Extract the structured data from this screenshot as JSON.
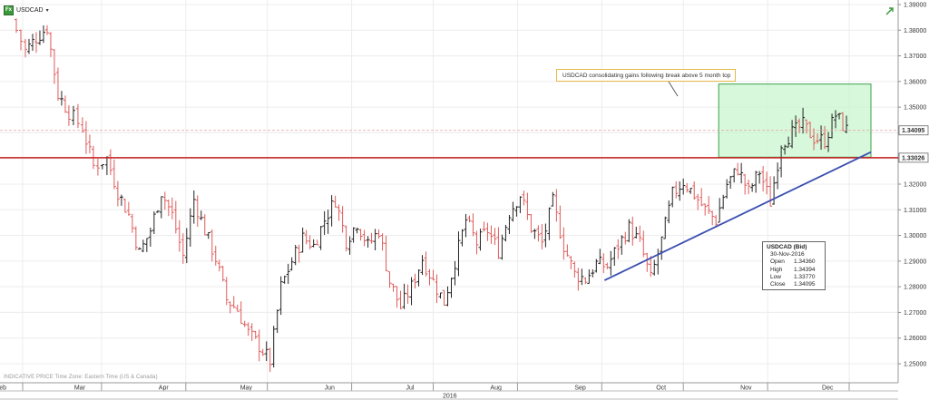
{
  "header": {
    "icon_label": "Fx",
    "symbol": "USDCAD",
    "caret": "▾"
  },
  "annotation": {
    "text": "USDCAD consolidating gains following break above  5 month top"
  },
  "info_box": {
    "title": "USDCAD (Bid)",
    "date": "30-Nov-2016",
    "rows": [
      {
        "label": "Open",
        "value": "1.34360"
      },
      {
        "label": "High",
        "value": "1.34394"
      },
      {
        "label": "Low",
        "value": "1.33770"
      },
      {
        "label": "Close",
        "value": "1.34095"
      }
    ]
  },
  "footer": {
    "note": "INDICATIVE PRICE   Time Zone: Eastern Time (US & Canada)"
  },
  "price_tags": {
    "current": "1.34095",
    "support": "1.33026"
  },
  "colors": {
    "up_bar": "#222222",
    "down_bar": "#e05a5a",
    "support_line": "#c81e1e",
    "trendline": "#3a4fb0",
    "highlight_fill": "#c9f5cf",
    "highlight_border": "#3aa04a",
    "current_price_line": "#e8a0a0"
  },
  "chart_data": {
    "type": "ohlc",
    "title": "USDCAD",
    "year_label": "2016",
    "x_months": [
      "Feb",
      "Mar",
      "Apr",
      "May",
      "Jun",
      "Jul",
      "Aug",
      "Sep",
      "Oct",
      "Nov",
      "Dec"
    ],
    "y_ticks": [
      "1.39000",
      "1.38000",
      "1.37000",
      "1.36000",
      "1.35000",
      "1.34000",
      "1.33000",
      "1.32000",
      "1.31000",
      "1.30000",
      "1.29000",
      "1.28000",
      "1.27000",
      "1.26000",
      "1.25000"
    ],
    "ylim": [
      1.245,
      1.39
    ],
    "grid": true,
    "support_level": 1.3303,
    "current_close": 1.34095,
    "trendline": {
      "start": {
        "date": "2016-09-02",
        "price": 1.2825
      },
      "end": {
        "date": "2016-12-09",
        "price": 1.3325
      }
    },
    "consolidation_box": {
      "start": "2016-10-14",
      "end": "2016-12-09",
      "low": 1.3305,
      "high": 1.359
    },
    "x": [
      "2016-01-28",
      "2016-12-09"
    ],
    "series": [
      {
        "close_path": [
          [
            "2016-01-28",
            1.384
          ],
          [
            "2016-02-02",
            1.372
          ],
          [
            "2016-02-06",
            1.377
          ],
          [
            "2016-02-10",
            1.381
          ],
          [
            "2016-02-14",
            1.355
          ],
          [
            "2016-02-18",
            1.348
          ],
          [
            "2016-02-23",
            1.342
          ],
          [
            "2016-02-27",
            1.327
          ],
          [
            "2016-03-03",
            1.33
          ],
          [
            "2016-03-07",
            1.317
          ],
          [
            "2016-03-11",
            1.308
          ],
          [
            "2016-03-15",
            1.293
          ],
          [
            "2016-03-19",
            1.302
          ],
          [
            "2016-03-23",
            1.317
          ],
          [
            "2016-03-27",
            1.308
          ],
          [
            "2016-03-31",
            1.292
          ],
          [
            "2016-04-04",
            1.314
          ],
          [
            "2016-04-08",
            1.302
          ],
          [
            "2016-04-12",
            1.291
          ],
          [
            "2016-04-16",
            1.275
          ],
          [
            "2016-04-20",
            1.271
          ],
          [
            "2016-04-24",
            1.262
          ],
          [
            "2016-04-28",
            1.257
          ],
          [
            "2016-05-02",
            1.251
          ],
          [
            "2016-05-06",
            1.28
          ],
          [
            "2016-05-10",
            1.29
          ],
          [
            "2016-05-14",
            1.299
          ],
          [
            "2016-05-18",
            1.296
          ],
          [
            "2016-05-22",
            1.306
          ],
          [
            "2016-05-26",
            1.314
          ],
          [
            "2016-05-30",
            1.298
          ],
          [
            "2016-06-03",
            1.305
          ],
          [
            "2016-06-07",
            1.296
          ],
          [
            "2016-06-11",
            1.302
          ],
          [
            "2016-06-15",
            1.282
          ],
          [
            "2016-06-19",
            1.272
          ],
          [
            "2016-06-23",
            1.28
          ],
          [
            "2016-06-27",
            1.291
          ],
          [
            "2016-07-01",
            1.282
          ],
          [
            "2016-07-05",
            1.274
          ],
          [
            "2016-07-09",
            1.29
          ],
          [
            "2016-07-13",
            1.306
          ],
          [
            "2016-07-17",
            1.297
          ],
          [
            "2016-07-21",
            1.302
          ],
          [
            "2016-07-25",
            1.294
          ],
          [
            "2016-07-29",
            1.309
          ],
          [
            "2016-08-02",
            1.316
          ],
          [
            "2016-08-06",
            1.303
          ],
          [
            "2016-08-10",
            1.297
          ],
          [
            "2016-08-14",
            1.313
          ],
          [
            "2016-08-18",
            1.296
          ],
          [
            "2016-08-22",
            1.285
          ],
          [
            "2016-08-26",
            1.283
          ],
          [
            "2016-08-30",
            1.289
          ],
          [
            "2016-09-03",
            1.288
          ],
          [
            "2016-09-07",
            1.296
          ],
          [
            "2016-09-11",
            1.303
          ],
          [
            "2016-09-15",
            1.297
          ],
          [
            "2016-09-19",
            1.283
          ],
          [
            "2016-09-23",
            1.298
          ],
          [
            "2016-09-27",
            1.316
          ],
          [
            "2016-10-01",
            1.321
          ],
          [
            "2016-10-05",
            1.316
          ],
          [
            "2016-10-09",
            1.31
          ],
          [
            "2016-10-13",
            1.306
          ],
          [
            "2016-10-17",
            1.32
          ],
          [
            "2016-10-21",
            1.326
          ],
          [
            "2016-10-25",
            1.317
          ],
          [
            "2016-10-29",
            1.325
          ],
          [
            "2016-11-02",
            1.313
          ],
          [
            "2016-11-06",
            1.336
          ],
          [
            "2016-11-10",
            1.34
          ],
          [
            "2016-11-14",
            1.343
          ],
          [
            "2016-11-18",
            1.338
          ],
          [
            "2016-11-22",
            1.337
          ],
          [
            "2016-11-26",
            1.347
          ],
          [
            "2016-11-30",
            1.341
          ]
        ]
      }
    ]
  }
}
